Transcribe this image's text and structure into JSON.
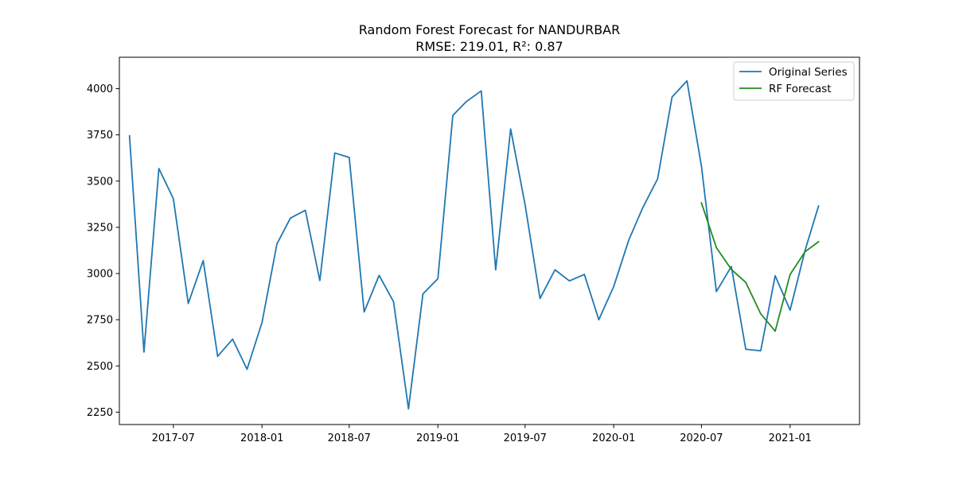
{
  "chart_data": {
    "type": "line",
    "title": "Random Forest Forecast for NANDURBAR",
    "subtitle": "RMSE: 219.01, R²: 0.87",
    "xlabel": "",
    "ylabel": "",
    "xlim": [
      "2017-03-11",
      "2021-05-25"
    ],
    "ylim": [
      2183,
      4170
    ],
    "grid": false,
    "legend_position": "top-right",
    "x_ticks": [
      "2017-07",
      "2018-01",
      "2018-07",
      "2019-01",
      "2019-07",
      "2020-01",
      "2020-07",
      "2021-01"
    ],
    "x_tick_dates": [
      "2017-07-01",
      "2018-01-01",
      "2018-07-01",
      "2019-01-01",
      "2019-07-01",
      "2020-01-01",
      "2020-07-01",
      "2021-01-01"
    ],
    "y_ticks": [
      2250,
      2500,
      2750,
      3000,
      3250,
      3500,
      3750,
      4000
    ],
    "series": [
      {
        "name": "Original Series",
        "color": "#1f77b4",
        "x": [
          "2017-04-01",
          "2017-05-01",
          "2017-06-01",
          "2017-07-01",
          "2017-08-01",
          "2017-09-01",
          "2017-10-01",
          "2017-11-01",
          "2017-12-01",
          "2018-01-01",
          "2018-02-01",
          "2018-03-01",
          "2018-04-01",
          "2018-05-01",
          "2018-06-01",
          "2018-07-01",
          "2018-08-01",
          "2018-09-01",
          "2018-10-01",
          "2018-11-01",
          "2018-12-01",
          "2019-01-01",
          "2019-02-01",
          "2019-03-01",
          "2019-04-01",
          "2019-05-01",
          "2019-06-01",
          "2019-07-01",
          "2019-08-01",
          "2019-09-01",
          "2019-10-01",
          "2019-11-01",
          "2019-12-01",
          "2020-01-01",
          "2020-02-01",
          "2020-03-01",
          "2020-04-01",
          "2020-05-01",
          "2020-06-01",
          "2020-07-01",
          "2020-08-01",
          "2020-09-01",
          "2020-10-01",
          "2020-11-01",
          "2020-12-01",
          "2021-01-01",
          "2021-02-01",
          "2021-03-01"
        ],
        "y": [
          3745,
          2575,
          3568,
          3405,
          2838,
          3070,
          2552,
          2645,
          2482,
          2735,
          3160,
          3300,
          3342,
          2962,
          3652,
          3628,
          2792,
          2990,
          2847,
          2268,
          2890,
          2972,
          3855,
          3930,
          3988,
          3020,
          3782,
          3372,
          2865,
          3020,
          2960,
          2995,
          2750,
          2930,
          3180,
          3355,
          3512,
          3955,
          4042,
          3580,
          2902,
          3038,
          2590,
          2582,
          2988,
          2802,
          3125,
          3365
        ]
      },
      {
        "name": "RF Forecast",
        "color": "#228b22",
        "x": [
          "2020-07-01",
          "2020-08-01",
          "2020-09-01",
          "2020-10-01",
          "2020-11-01",
          "2020-12-01",
          "2021-01-01",
          "2021-02-01",
          "2021-03-01"
        ],
        "y": [
          3382,
          3140,
          3022,
          2952,
          2782,
          2688,
          2995,
          3118,
          3172
        ]
      }
    ]
  }
}
